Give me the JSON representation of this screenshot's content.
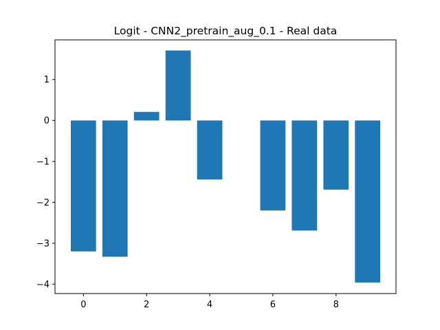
{
  "chart_data": {
    "type": "bar",
    "title": "Logit - CNN2_pretrain_aug_0.1 - Real data",
    "xlabel": "",
    "ylabel": "",
    "categories": [
      0,
      1,
      2,
      3,
      4,
      5,
      6,
      7,
      8,
      9
    ],
    "values": [
      -3.2,
      -3.33,
      0.21,
      1.71,
      -1.44,
      0.0,
      -2.2,
      -2.69,
      -1.69,
      -3.96
    ],
    "xlim": [
      -0.9,
      9.9
    ],
    "ylim": [
      -4.23,
      1.97
    ],
    "xticks": [
      0,
      2,
      4,
      6,
      8
    ],
    "yticks": [
      1,
      0,
      -1,
      -2,
      -3,
      -4
    ],
    "ytick_labels": [
      "1",
      "0",
      "−1",
      "−2",
      "−3",
      "−4"
    ],
    "bar_color": "#1f77b4",
    "grid": false,
    "legend": "none"
  }
}
